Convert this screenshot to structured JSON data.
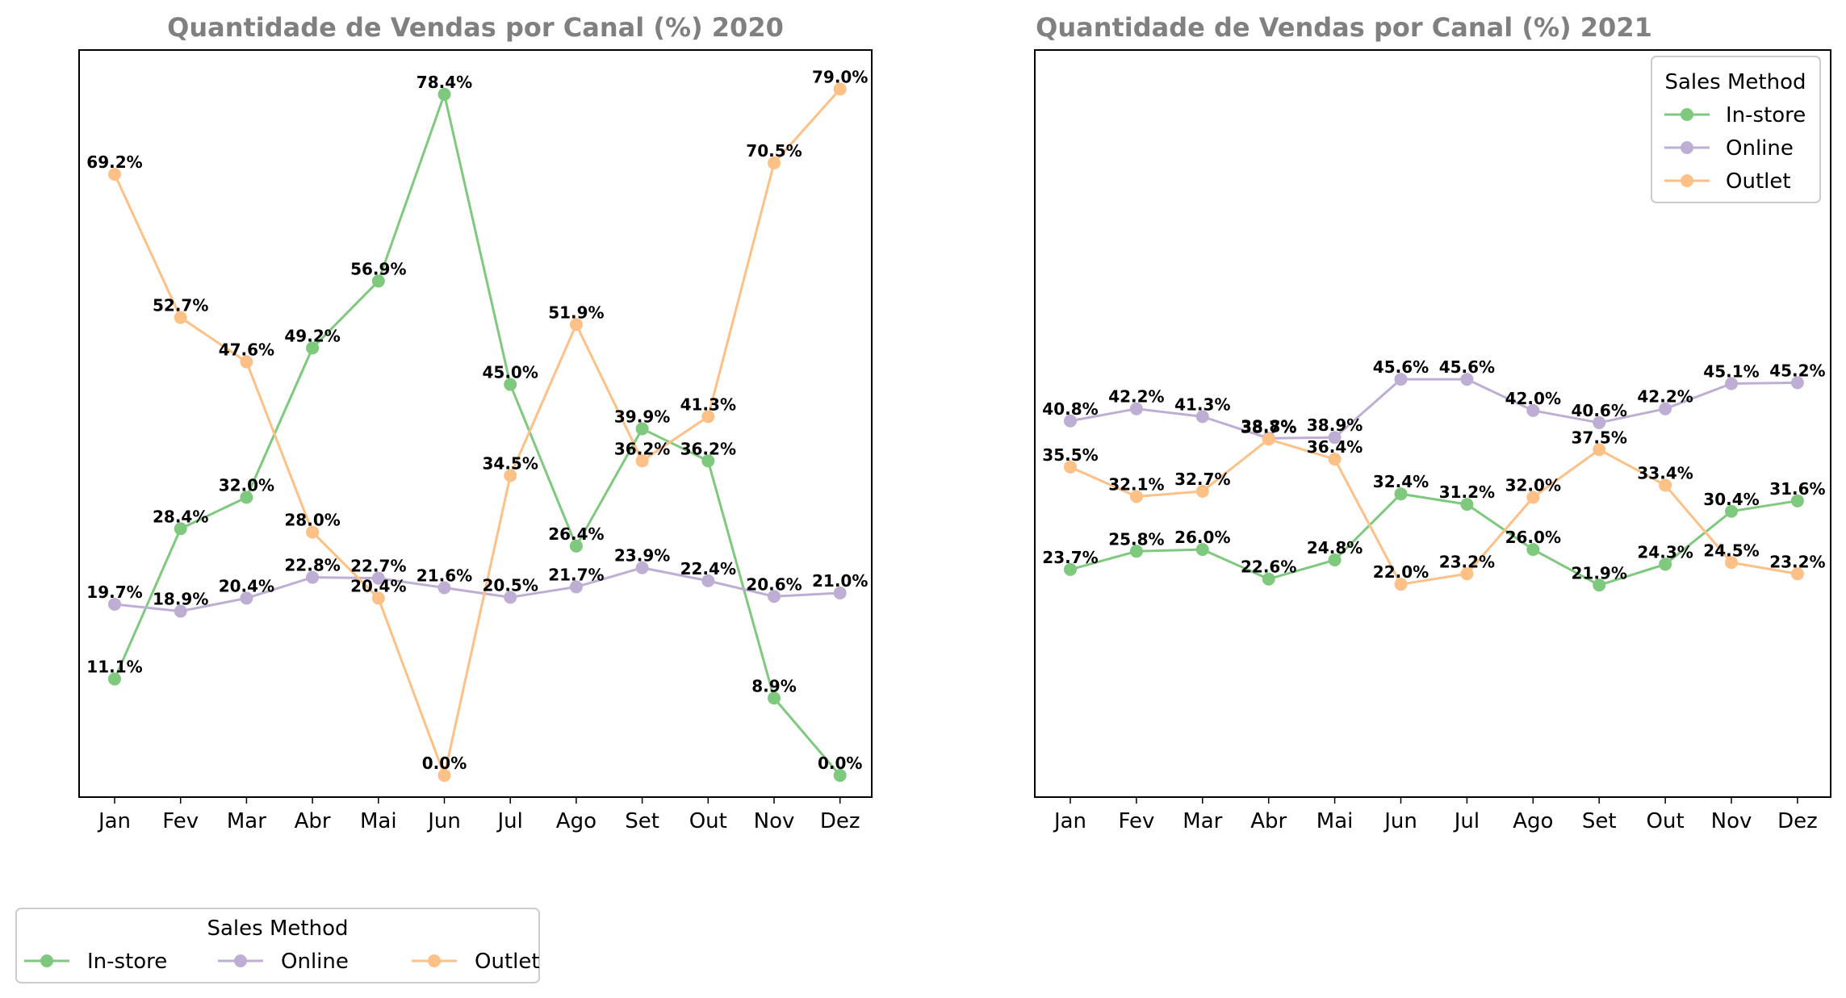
{
  "chart_data": [
    {
      "type": "line",
      "title": "Quantidade de Vendas por Canal (%) 2020",
      "xlabel": "",
      "ylabel": "",
      "categories": [
        "Jan",
        "Fev",
        "Mar",
        "Abr",
        "Mai",
        "Jun",
        "Jul",
        "Ago",
        "Set",
        "Out",
        "Nov",
        "Dez"
      ],
      "ylim": [
        -2.5,
        83.5
      ],
      "y_ticks_visible": false,
      "grid": false,
      "legend_position": "lower-left-outside",
      "series": [
        {
          "name": "In-store",
          "color": "#7fc97f",
          "values": [
            11.1,
            28.4,
            32.0,
            49.2,
            56.9,
            78.4,
            45.0,
            26.4,
            39.9,
            36.2,
            8.9,
            0.0
          ],
          "labels": [
            "11.1%",
            "28.4%",
            "32.0%",
            "49.2%",
            "56.9%",
            "78.4%",
            "45.0%",
            "26.4%",
            "39.9%",
            "36.2%",
            "8.9%",
            "0.0%"
          ]
        },
        {
          "name": "Online",
          "color": "#beaed4",
          "values": [
            19.7,
            18.9,
            20.4,
            22.8,
            22.7,
            21.6,
            20.5,
            21.7,
            23.9,
            22.4,
            20.6,
            21.0
          ],
          "labels": [
            "19.7%",
            "18.9%",
            "20.4%",
            "22.8%",
            "22.7%",
            "21.6%",
            "20.5%",
            "21.7%",
            "23.9%",
            "22.4%",
            "20.6%",
            "21.0%"
          ]
        },
        {
          "name": "Outlet",
          "color": "#fdc086",
          "values": [
            69.2,
            52.7,
            47.6,
            28.0,
            20.4,
            0.0,
            34.5,
            51.9,
            36.2,
            41.3,
            70.5,
            79.0
          ],
          "labels": [
            "69.2%",
            "52.7%",
            "47.6%",
            "28.0%",
            "20.4%",
            "0.0%",
            "34.5%",
            "51.9%",
            "36.2%",
            "41.3%",
            "70.5%",
            "79.0%"
          ]
        }
      ]
    },
    {
      "type": "line",
      "title": "Quantidade de Vendas por Canal (%) 2021",
      "xlabel": "",
      "ylabel": "",
      "categories": [
        "Jan",
        "Fev",
        "Mar",
        "Abr",
        "Mai",
        "Jun",
        "Jul",
        "Ago",
        "Set",
        "Out",
        "Nov",
        "Dez"
      ],
      "ylim": [
        -2.5,
        83.5
      ],
      "y_ticks_visible": false,
      "grid": false,
      "legend_position": "upper-right",
      "series": [
        {
          "name": "In-store",
          "color": "#7fc97f",
          "values": [
            23.7,
            25.8,
            26.0,
            22.6,
            24.8,
            32.4,
            31.2,
            26.0,
            21.9,
            24.3,
            30.4,
            31.6
          ],
          "labels": [
            "23.7%",
            "25.8%",
            "26.0%",
            "22.6%",
            "24.8%",
            "32.4%",
            "31.2%",
            "26.0%",
            "21.9%",
            "24.3%",
            "30.4%",
            "31.6%"
          ]
        },
        {
          "name": "Online",
          "color": "#beaed4",
          "values": [
            40.8,
            42.2,
            41.3,
            38.8,
            38.9,
            45.6,
            45.6,
            42.0,
            40.6,
            42.2,
            45.1,
            45.2
          ],
          "labels": [
            "40.8%",
            "42.2%",
            "41.3%",
            "38.8%",
            "38.9%",
            "45.6%",
            "45.6%",
            "42.0%",
            "40.6%",
            "42.2%",
            "45.1%",
            "45.2%"
          ]
        },
        {
          "name": "Outlet",
          "color": "#fdc086",
          "values": [
            35.5,
            32.1,
            32.7,
            38.7,
            36.4,
            22.0,
            23.2,
            32.0,
            37.5,
            33.4,
            24.5,
            23.2
          ],
          "labels": [
            "35.5%",
            "32.1%",
            "32.7%",
            "38.7%",
            "36.4%",
            "22.0%",
            "23.2%",
            "32.0%",
            "37.5%",
            "33.4%",
            "24.5%",
            "23.2%"
          ]
        }
      ]
    }
  ],
  "legend": {
    "title": "Sales Method",
    "items": [
      "In-store",
      "Online",
      "Outlet"
    ]
  }
}
